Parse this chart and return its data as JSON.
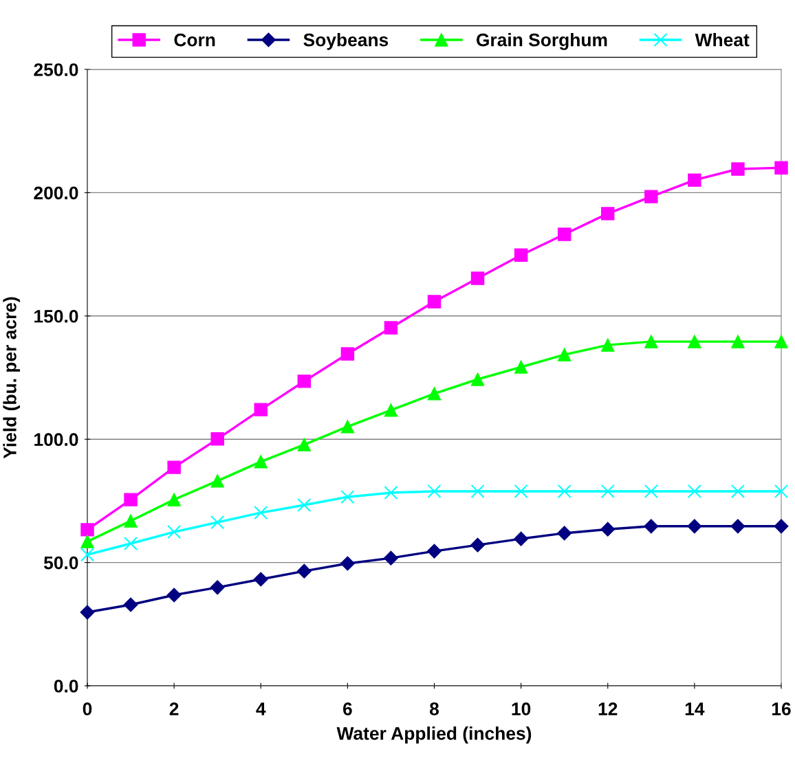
{
  "chart_data": {
    "type": "line",
    "xlabel": "Water Applied (inches)",
    "ylabel": "Yield (bu. per acre)",
    "x": [
      0,
      1,
      2,
      3,
      4,
      5,
      6,
      7,
      8,
      9,
      10,
      11,
      12,
      13,
      14,
      15,
      16
    ],
    "series": [
      {
        "name": "Corn",
        "color": "#ff00ff",
        "marker": "square",
        "values": [
          63.3,
          75.5,
          88.6,
          100.1,
          112.0,
          123.5,
          134.6,
          145.2,
          155.8,
          165.3,
          174.7,
          183.1,
          191.5,
          198.4,
          205.1,
          209.6,
          210.1
        ]
      },
      {
        "name": "Soybeans",
        "color": "#000080",
        "marker": "diamond",
        "values": [
          29.8,
          32.9,
          36.8,
          39.9,
          43.2,
          46.5,
          49.6,
          51.8,
          54.6,
          57.1,
          59.6,
          61.9,
          63.5,
          64.7,
          64.7,
          64.7,
          64.7
        ]
      },
      {
        "name": "Grain Sorghum",
        "color": "#00ff00",
        "marker": "triangle",
        "values": [
          58.5,
          66.9,
          75.5,
          83.1,
          90.9,
          97.8,
          105.1,
          111.8,
          118.5,
          124.3,
          129.3,
          134.3,
          138.2,
          139.6,
          139.6,
          139.6,
          139.6
        ]
      },
      {
        "name": "Wheat",
        "color": "#00ffff",
        "marker": "cross",
        "values": [
          53.2,
          57.7,
          62.4,
          66.3,
          70.2,
          73.3,
          76.6,
          78.3,
          78.9,
          78.9,
          78.9,
          78.9,
          78.9,
          78.9,
          78.9,
          78.9,
          78.9
        ]
      }
    ],
    "xlim": [
      0,
      16
    ],
    "xticks": [
      0,
      2,
      4,
      6,
      8,
      10,
      12,
      14,
      16
    ],
    "ylim": [
      0,
      250
    ],
    "yticks": [
      {
        "value": 0,
        "label": "0.0"
      },
      {
        "value": 50,
        "label": "50.0"
      },
      {
        "value": 100,
        "label": "100.0"
      },
      {
        "value": 150,
        "label": "150.0"
      },
      {
        "value": 200,
        "label": "200.0"
      },
      {
        "value": 250,
        "label": "250.0"
      }
    ],
    "grid": "y",
    "legend": "top",
    "line_style": "solid"
  }
}
